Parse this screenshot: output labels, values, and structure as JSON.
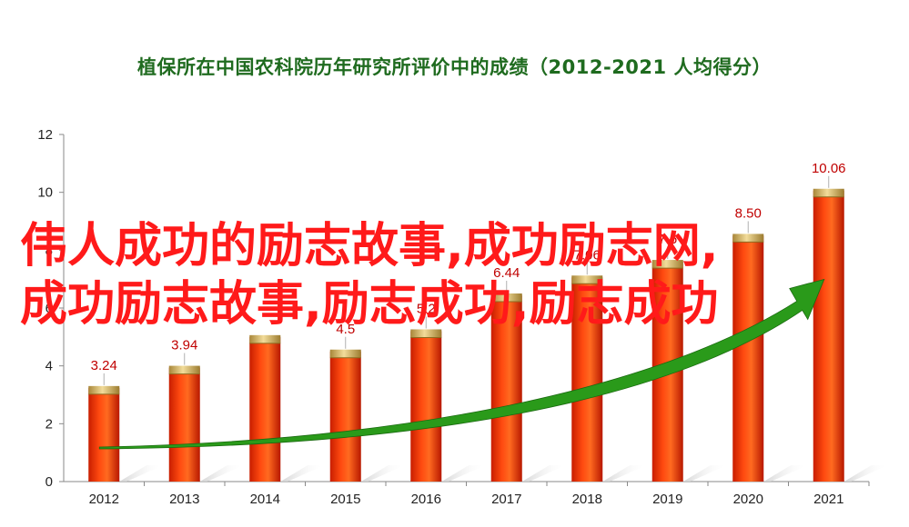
{
  "chart_data": {
    "type": "bar",
    "title": "植保所在中国农科院历年研究所评价中的成绩（2012-2021  人均得分）",
    "categories": [
      "2012",
      "2013",
      "2014",
      "2015",
      "2016",
      "2017",
      "2018",
      "2019",
      "2020",
      "2021"
    ],
    "values": [
      3.24,
      3.94,
      5.0,
      4.5,
      5.2,
      6.44,
      7.06,
      7.6,
      8.5,
      10.06
    ],
    "data_labels": [
      "3.24",
      "3.94",
      "",
      "4.5",
      "5.2",
      "6.44",
      "7.06",
      "7.6",
      "8.50",
      "10.06"
    ],
    "yticks": [
      "0",
      "2",
      "4",
      "6",
      "8",
      "10",
      "12"
    ],
    "ylim": [
      0,
      12
    ],
    "grid": false,
    "legend": "none",
    "colors": {
      "bar": "#ff3a00",
      "bar_cap": "#d4b35a",
      "label": "#c00000",
      "arrow": "#2a9a1a"
    }
  },
  "watermark": {
    "line1": "伟人成功的励志故事,成功励志网,",
    "line2": "成功励志故事,励志成功,励志成功"
  }
}
